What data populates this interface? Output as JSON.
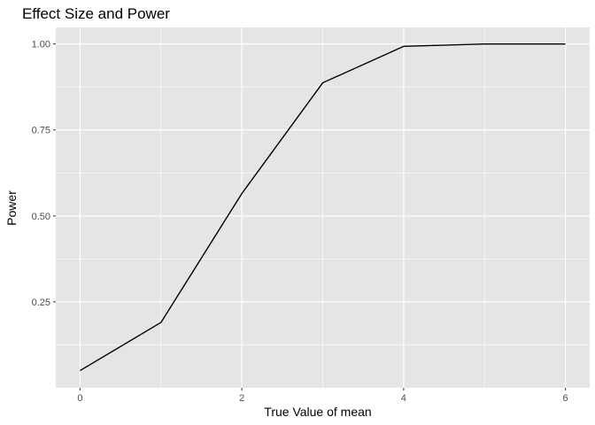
{
  "chart_data": {
    "type": "line",
    "title": "Effect Size and Power",
    "xlabel": "True Value of mean",
    "ylabel": "Power",
    "x": [
      0,
      1,
      2,
      3,
      4,
      5,
      6
    ],
    "series": [
      {
        "values": [
          0.05,
          0.19,
          0.565,
          0.887,
          0.993,
          1.0,
          1.0
        ]
      }
    ],
    "xlim": [
      -0.3,
      6.3
    ],
    "ylim": [
      -0.0,
      1.048
    ],
    "xticks": [
      0,
      2,
      4,
      6
    ],
    "xtick_labels": [
      "0",
      "2",
      "4",
      "6"
    ],
    "yticks": [
      0.25,
      0.5,
      0.75,
      1.0
    ],
    "ytick_labels": [
      "0.25",
      "0.50",
      "0.75",
      "1.00"
    ],
    "grid": true,
    "colors": {
      "panel_bg": "#e5e5e5",
      "grid": "#ffffff",
      "line": "#000000"
    }
  }
}
